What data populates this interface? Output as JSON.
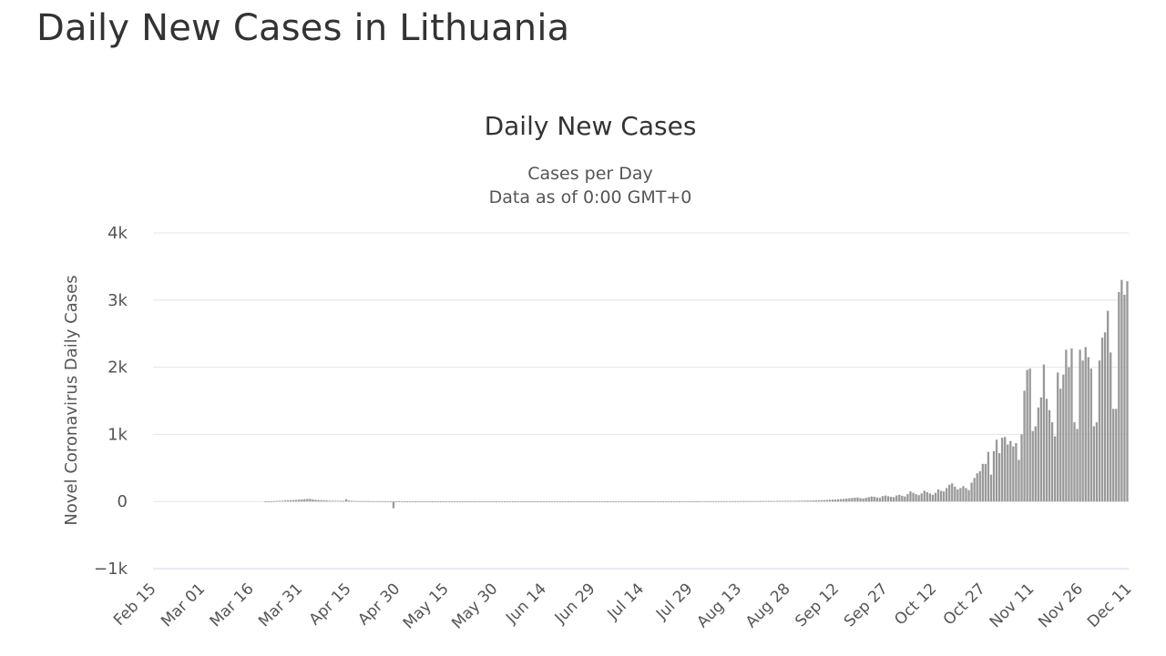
{
  "page": {
    "title": "Daily New Cases in Lithuania"
  },
  "chart_data": {
    "type": "bar",
    "title": "Daily New Cases",
    "subtitle_lines": [
      "Cases per Day",
      "Data as of 0:00 GMT+0"
    ],
    "xlabel": "",
    "ylabel": "Novel Coronavirus Daily Cases",
    "ylim": [
      -1000,
      4000
    ],
    "y_ticks": [
      {
        "value": -1000,
        "label": "−1k"
      },
      {
        "value": 0,
        "label": "0"
      },
      {
        "value": 1000,
        "label": "1k"
      },
      {
        "value": 2000,
        "label": "2k"
      },
      {
        "value": 3000,
        "label": "3k"
      },
      {
        "value": 4000,
        "label": "4k"
      }
    ],
    "x_start": "Feb 15",
    "x_end": "Dec 13",
    "x_tick_labels": [
      "Feb 15",
      "Mar 01",
      "Mar 16",
      "Mar 31",
      "Apr 15",
      "Apr 30",
      "May 15",
      "May 30",
      "Jun 14",
      "Jun 29",
      "Jul 14",
      "Jul 29",
      "Aug 13",
      "Aug 28",
      "Sep 12",
      "Sep 27",
      "Oct 12",
      "Oct 27",
      "Nov 11",
      "Nov 26",
      "Dec 11"
    ],
    "grid": true,
    "bar_color": "#999999",
    "grid_color": "#e6e6e6",
    "zero_line_color": "#ccd6eb",
    "values": [
      0,
      0,
      0,
      0,
      0,
      0,
      0,
      0,
      0,
      0,
      0,
      0,
      0,
      0,
      0,
      0,
      0,
      0,
      0,
      0,
      0,
      0,
      0,
      0,
      0,
      0,
      0,
      0,
      0,
      0,
      0,
      0,
      0,
      0,
      0,
      0,
      0,
      0,
      0,
      0,
      1,
      2,
      3,
      5,
      8,
      10,
      12,
      15,
      18,
      20,
      22,
      25,
      28,
      30,
      35,
      38,
      40,
      30,
      25,
      22,
      20,
      18,
      15,
      12,
      12,
      10,
      10,
      9,
      8,
      35,
      15,
      10,
      8,
      8,
      6,
      6,
      5,
      6,
      5,
      4,
      4,
      5,
      4,
      4,
      4,
      4,
      -100,
      3,
      3,
      3,
      2,
      2,
      2,
      2,
      2,
      2,
      2,
      2,
      2,
      2,
      2,
      1,
      1,
      1,
      1,
      1,
      1,
      1,
      1,
      1,
      1,
      1,
      1,
      1,
      1,
      1,
      1,
      1,
      1,
      1,
      1,
      1,
      1,
      1,
      1,
      1,
      1,
      1,
      1,
      1,
      1,
      1,
      1,
      1,
      1,
      1,
      1,
      1,
      1,
      1,
      1,
      1,
      1,
      1,
      1,
      1,
      1,
      1,
      1,
      1,
      1,
      1,
      1,
      1,
      1,
      1,
      1,
      1,
      1,
      1,
      1,
      1,
      1,
      1,
      1,
      1,
      1,
      2,
      2,
      2,
      2,
      2,
      2,
      2,
      2,
      2,
      2,
      2,
      2,
      2,
      3,
      3,
      3,
      3,
      3,
      3,
      3,
      3,
      3,
      3,
      3,
      3,
      3,
      3,
      3,
      3,
      3,
      4,
      4,
      4,
      4,
      4,
      4,
      4,
      4,
      4,
      5,
      5,
      5,
      5,
      5,
      6,
      6,
      6,
      6,
      6,
      7,
      7,
      7,
      7,
      8,
      8,
      8,
      8,
      9,
      9,
      9,
      10,
      10,
      10,
      11,
      11,
      12,
      13,
      13,
      14,
      15,
      16,
      17,
      18,
      20,
      22,
      24,
      26,
      28,
      30,
      33,
      36,
      40,
      44,
      48,
      52,
      56,
      60,
      50,
      45,
      55,
      65,
      75,
      70,
      60,
      55,
      80,
      90,
      80,
      70,
      65,
      90,
      100,
      85,
      75,
      110,
      150,
      130,
      110,
      95,
      120,
      160,
      140,
      120,
      100,
      130,
      180,
      160,
      150,
      200,
      250,
      270,
      220,
      180,
      200,
      230,
      200,
      170,
      280,
      350,
      420,
      450,
      560,
      560,
      740,
      400,
      750,
      920,
      720,
      950,
      960,
      850,
      900,
      820,
      870,
      620,
      1000,
      1650,
      1960,
      1980,
      1050,
      1120,
      1400,
      1550,
      2040,
      1530,
      1360,
      1180,
      970,
      1920,
      1680,
      1890,
      2260,
      2000,
      2280,
      1180,
      1080,
      2260,
      2100,
      2300,
      2150,
      1980,
      1120,
      1180,
      2100,
      2440,
      2520,
      2840,
      2220,
      1380,
      1380,
      3120,
      3300,
      3080,
      3280
    ]
  }
}
